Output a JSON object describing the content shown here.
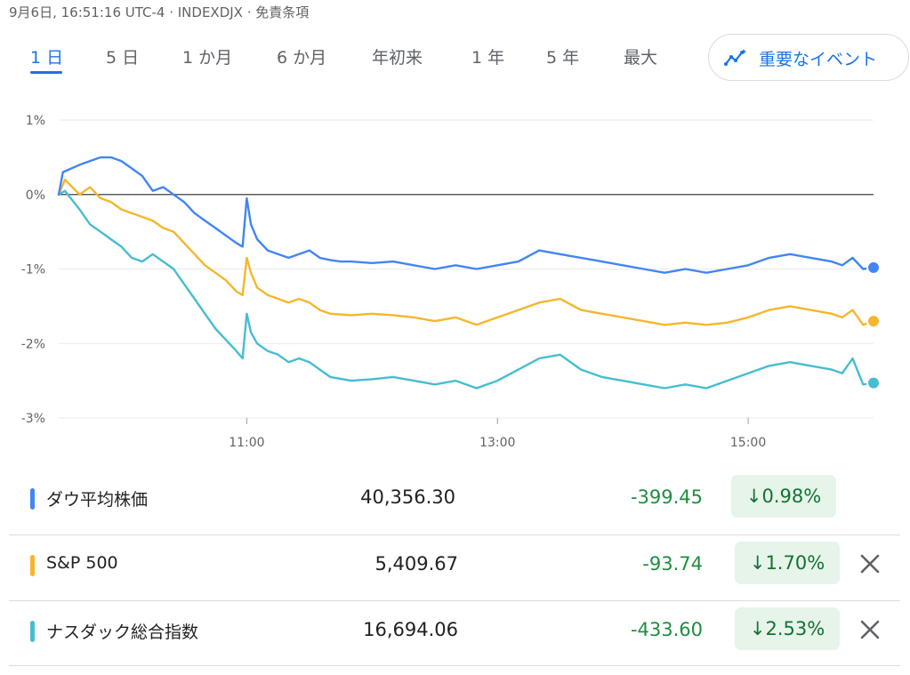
{
  "header": {
    "meta": "9月6日, 16:51:16 UTC-4 · INDEXDJX · 免責条項"
  },
  "tabs": [
    {
      "label": "1 日",
      "active": true
    },
    {
      "label": "5 日",
      "active": false
    },
    {
      "label": "1 か月",
      "active": false
    },
    {
      "label": "6 か月",
      "active": false
    },
    {
      "label": "年初来",
      "active": false
    },
    {
      "label": "1 年",
      "active": false
    },
    {
      "label": "5 年",
      "active": false
    },
    {
      "label": "最大",
      "active": false
    }
  ],
  "events_button": {
    "label": "重要なイベント",
    "icon": "sparkline-chart-icon"
  },
  "colors": {
    "dow": "#4285f4",
    "sp500": "#f6b62c",
    "nasdaq": "#46bdd0",
    "accent": "#1a73e8",
    "positive_bg": "#e6f4ea"
  },
  "chart_data": {
    "type": "line",
    "y_unit": "%",
    "ylim": [
      -3,
      1
    ],
    "y_ticks": [
      "1%",
      "0%",
      "-1%",
      "-2%",
      "-3%"
    ],
    "x_ticks": [
      "11:00",
      "13:00",
      "15:00"
    ],
    "xlim": [
      "9:30",
      "16:00"
    ],
    "baseline": 0,
    "grid": true,
    "series": [
      {
        "name": "ダウ平均株価",
        "color": "#4285f4",
        "points": [
          [
            "9:30",
            0.0
          ],
          [
            "9:32",
            0.3
          ],
          [
            "9:40",
            0.4
          ],
          [
            "9:50",
            0.5
          ],
          [
            "9:55",
            0.5
          ],
          [
            "10:00",
            0.45
          ],
          [
            "10:05",
            0.35
          ],
          [
            "10:10",
            0.25
          ],
          [
            "10:15",
            0.05
          ],
          [
            "10:20",
            0.1
          ],
          [
            "10:25",
            0.0
          ],
          [
            "10:30",
            -0.1
          ],
          [
            "10:35",
            -0.25
          ],
          [
            "10:40",
            -0.35
          ],
          [
            "10:45",
            -0.45
          ],
          [
            "10:50",
            -0.55
          ],
          [
            "10:55",
            -0.65
          ],
          [
            "10:58",
            -0.7
          ],
          [
            "11:00",
            -0.05
          ],
          [
            "11:02",
            -0.4
          ],
          [
            "11:05",
            -0.6
          ],
          [
            "11:10",
            -0.75
          ],
          [
            "11:15",
            -0.8
          ],
          [
            "11:20",
            -0.85
          ],
          [
            "11:25",
            -0.8
          ],
          [
            "11:30",
            -0.75
          ],
          [
            "11:35",
            -0.85
          ],
          [
            "11:40",
            -0.88
          ],
          [
            "11:45",
            -0.9
          ],
          [
            "11:50",
            -0.9
          ],
          [
            "12:00",
            -0.92
          ],
          [
            "12:10",
            -0.9
          ],
          [
            "12:20",
            -0.95
          ],
          [
            "12:30",
            -1.0
          ],
          [
            "12:40",
            -0.95
          ],
          [
            "12:50",
            -1.0
          ],
          [
            "13:00",
            -0.95
          ],
          [
            "13:10",
            -0.9
          ],
          [
            "13:20",
            -0.75
          ],
          [
            "13:30",
            -0.8
          ],
          [
            "13:40",
            -0.85
          ],
          [
            "13:50",
            -0.9
          ],
          [
            "14:00",
            -0.95
          ],
          [
            "14:10",
            -1.0
          ],
          [
            "14:20",
            -1.05
          ],
          [
            "14:30",
            -1.0
          ],
          [
            "14:40",
            -1.05
          ],
          [
            "14:50",
            -1.0
          ],
          [
            "15:00",
            -0.95
          ],
          [
            "15:10",
            -0.85
          ],
          [
            "15:20",
            -0.8
          ],
          [
            "15:30",
            -0.85
          ],
          [
            "15:40",
            -0.9
          ],
          [
            "15:45",
            -0.95
          ],
          [
            "15:50",
            -0.85
          ],
          [
            "15:55",
            -1.0
          ],
          [
            "16:00",
            -0.98
          ]
        ]
      },
      {
        "name": "S&P 500",
        "color": "#f6b62c",
        "points": [
          [
            "9:30",
            0.0
          ],
          [
            "9:33",
            0.2
          ],
          [
            "9:40",
            0.0
          ],
          [
            "9:45",
            0.1
          ],
          [
            "9:50",
            -0.05
          ],
          [
            "9:55",
            -0.1
          ],
          [
            "10:00",
            -0.2
          ],
          [
            "10:05",
            -0.25
          ],
          [
            "10:10",
            -0.3
          ],
          [
            "10:15",
            -0.35
          ],
          [
            "10:20",
            -0.45
          ],
          [
            "10:25",
            -0.5
          ],
          [
            "10:30",
            -0.65
          ],
          [
            "10:35",
            -0.8
          ],
          [
            "10:40",
            -0.95
          ],
          [
            "10:45",
            -1.05
          ],
          [
            "10:50",
            -1.15
          ],
          [
            "10:55",
            -1.3
          ],
          [
            "10:58",
            -1.35
          ],
          [
            "11:00",
            -0.85
          ],
          [
            "11:02",
            -1.05
          ],
          [
            "11:05",
            -1.25
          ],
          [
            "11:10",
            -1.35
          ],
          [
            "11:15",
            -1.4
          ],
          [
            "11:20",
            -1.45
          ],
          [
            "11:25",
            -1.4
          ],
          [
            "11:30",
            -1.45
          ],
          [
            "11:35",
            -1.55
          ],
          [
            "11:40",
            -1.6
          ],
          [
            "11:50",
            -1.62
          ],
          [
            "12:00",
            -1.6
          ],
          [
            "12:10",
            -1.62
          ],
          [
            "12:20",
            -1.65
          ],
          [
            "12:30",
            -1.7
          ],
          [
            "12:40",
            -1.65
          ],
          [
            "12:50",
            -1.75
          ],
          [
            "13:00",
            -1.65
          ],
          [
            "13:10",
            -1.55
          ],
          [
            "13:20",
            -1.45
          ],
          [
            "13:30",
            -1.4
          ],
          [
            "13:40",
            -1.55
          ],
          [
            "13:50",
            -1.6
          ],
          [
            "14:00",
            -1.65
          ],
          [
            "14:10",
            -1.7
          ],
          [
            "14:20",
            -1.75
          ],
          [
            "14:30",
            -1.72
          ],
          [
            "14:40",
            -1.75
          ],
          [
            "14:50",
            -1.72
          ],
          [
            "15:00",
            -1.65
          ],
          [
            "15:10",
            -1.55
          ],
          [
            "15:20",
            -1.5
          ],
          [
            "15:30",
            -1.55
          ],
          [
            "15:40",
            -1.6
          ],
          [
            "15:45",
            -1.65
          ],
          [
            "15:50",
            -1.55
          ],
          [
            "15:55",
            -1.75
          ],
          [
            "16:00",
            -1.7
          ]
        ]
      },
      {
        "name": "ナスダック総合指数",
        "color": "#46bdd0",
        "points": [
          [
            "9:30",
            0.0
          ],
          [
            "9:33",
            0.05
          ],
          [
            "9:40",
            -0.2
          ],
          [
            "9:45",
            -0.4
          ],
          [
            "9:50",
            -0.5
          ],
          [
            "9:55",
            -0.6
          ],
          [
            "10:00",
            -0.7
          ],
          [
            "10:05",
            -0.85
          ],
          [
            "10:10",
            -0.9
          ],
          [
            "10:15",
            -0.8
          ],
          [
            "10:20",
            -0.9
          ],
          [
            "10:25",
            -1.0
          ],
          [
            "10:30",
            -1.2
          ],
          [
            "10:35",
            -1.4
          ],
          [
            "10:40",
            -1.6
          ],
          [
            "10:45",
            -1.8
          ],
          [
            "10:50",
            -1.95
          ],
          [
            "10:55",
            -2.1
          ],
          [
            "10:58",
            -2.2
          ],
          [
            "11:00",
            -1.6
          ],
          [
            "11:02",
            -1.85
          ],
          [
            "11:05",
            -2.0
          ],
          [
            "11:10",
            -2.1
          ],
          [
            "11:15",
            -2.15
          ],
          [
            "11:20",
            -2.25
          ],
          [
            "11:25",
            -2.2
          ],
          [
            "11:30",
            -2.25
          ],
          [
            "11:35",
            -2.35
          ],
          [
            "11:40",
            -2.45
          ],
          [
            "11:50",
            -2.5
          ],
          [
            "12:00",
            -2.48
          ],
          [
            "12:10",
            -2.45
          ],
          [
            "12:20",
            -2.5
          ],
          [
            "12:30",
            -2.55
          ],
          [
            "12:40",
            -2.5
          ],
          [
            "12:50",
            -2.6
          ],
          [
            "13:00",
            -2.5
          ],
          [
            "13:10",
            -2.35
          ],
          [
            "13:20",
            -2.2
          ],
          [
            "13:30",
            -2.15
          ],
          [
            "13:40",
            -2.35
          ],
          [
            "13:50",
            -2.45
          ],
          [
            "14:00",
            -2.5
          ],
          [
            "14:10",
            -2.55
          ],
          [
            "14:20",
            -2.6
          ],
          [
            "14:30",
            -2.55
          ],
          [
            "14:40",
            -2.6
          ],
          [
            "14:50",
            -2.5
          ],
          [
            "15:00",
            -2.4
          ],
          [
            "15:10",
            -2.3
          ],
          [
            "15:20",
            -2.25
          ],
          [
            "15:30",
            -2.3
          ],
          [
            "15:40",
            -2.35
          ],
          [
            "15:45",
            -2.4
          ],
          [
            "15:50",
            -2.2
          ],
          [
            "15:55",
            -2.55
          ],
          [
            "16:00",
            -2.53
          ]
        ]
      }
    ]
  },
  "quotes": [
    {
      "name": "ダウ平均株価",
      "price": "40,356.30",
      "change": "-399.45",
      "pct": "0.98%",
      "arrow": "↓",
      "color": "#4285f4",
      "removable": false
    },
    {
      "name": "S&P 500",
      "price": "5,409.67",
      "change": "-93.74",
      "pct": "1.70%",
      "arrow": "↓",
      "color": "#f6b62c",
      "removable": true
    },
    {
      "name": "ナスダック総合指数",
      "price": "16,694.06",
      "change": "-433.60",
      "pct": "2.53%",
      "arrow": "↓",
      "color": "#46bdd0",
      "removable": true
    }
  ]
}
